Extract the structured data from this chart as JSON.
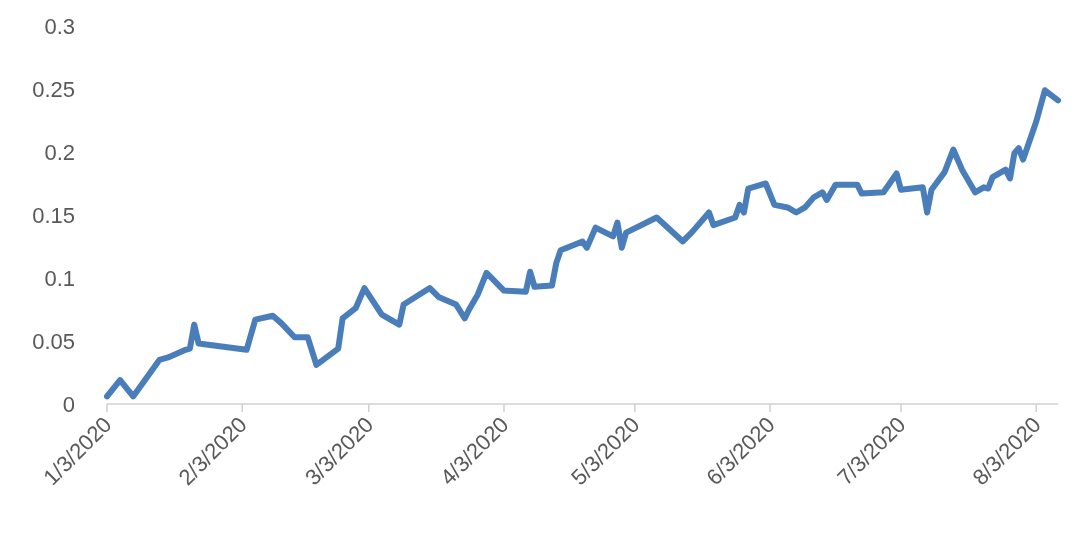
{
  "chart_data": {
    "type": "line",
    "marker": "none",
    "line_style": "solid",
    "xlim": [
      "2020-01-03",
      "2020-08-08"
    ],
    "xticks": [
      {
        "value": "2020-01-03",
        "label": "1/3/2020"
      },
      {
        "value": "2020-02-03",
        "label": "2/3/2020"
      },
      {
        "value": "2020-03-03",
        "label": "3/3/2020"
      },
      {
        "value": "2020-04-03",
        "label": "4/3/2020"
      },
      {
        "value": "2020-05-03",
        "label": "5/3/2020"
      },
      {
        "value": "2020-06-03",
        "label": "6/3/2020"
      },
      {
        "value": "2020-07-03",
        "label": "7/3/2020"
      },
      {
        "value": "2020-08-03",
        "label": "8/3/2020"
      }
    ],
    "ylim": [
      0,
      0.3
    ],
    "yticks": [
      0,
      0.05,
      0.1,
      0.15,
      0.2,
      0.25,
      0.3
    ],
    "x": [
      "2020-01-03",
      "2020-01-06",
      "2020-01-09",
      "2020-01-15",
      "2020-01-17",
      "2020-01-21",
      "2020-01-22",
      "2020-01-23",
      "2020-01-24",
      "2020-02-04",
      "2020-02-06",
      "2020-02-10",
      "2020-02-12",
      "2020-02-15",
      "2020-02-18",
      "2020-02-20",
      "2020-02-25",
      "2020-02-26",
      "2020-02-29",
      "2020-03-02",
      "2020-03-06",
      "2020-03-10",
      "2020-03-11",
      "2020-03-17",
      "2020-03-19",
      "2020-03-23",
      "2020-03-25",
      "2020-03-26",
      "2020-03-28",
      "2020-03-30",
      "2020-04-03",
      "2020-04-08",
      "2020-04-09",
      "2020-04-10",
      "2020-04-14",
      "2020-04-15",
      "2020-04-16",
      "2020-04-21",
      "2020-04-22",
      "2020-04-24",
      "2020-04-28",
      "2020-04-29",
      "2020-04-30",
      "2020-05-01",
      "2020-05-08",
      "2020-05-14",
      "2020-05-16",
      "2020-05-20",
      "2020-05-21",
      "2020-05-26",
      "2020-05-27",
      "2020-05-28",
      "2020-05-29",
      "2020-06-02",
      "2020-06-04",
      "2020-06-07",
      "2020-06-09",
      "2020-06-11",
      "2020-06-13",
      "2020-06-15",
      "2020-06-16",
      "2020-06-18",
      "2020-06-23",
      "2020-06-24",
      "2020-06-29",
      "2020-07-02",
      "2020-07-03",
      "2020-07-08",
      "2020-07-09",
      "2020-07-10",
      "2020-07-13",
      "2020-07-15",
      "2020-07-17",
      "2020-07-20",
      "2020-07-22",
      "2020-07-23",
      "2020-07-24",
      "2020-07-27",
      "2020-07-28",
      "2020-07-29",
      "2020-07-30",
      "2020-07-31",
      "2020-08-03",
      "2020-08-05",
      "2020-08-08"
    ],
    "series": [
      {
        "color": "#4a7ebb",
        "values": [
          0.006,
          0.019,
          0.006,
          0.035,
          0.037,
          0.043,
          0.044,
          0.063,
          0.048,
          0.043,
          0.067,
          0.07,
          0.064,
          0.053,
          0.053,
          0.031,
          0.044,
          0.068,
          0.076,
          0.092,
          0.071,
          0.063,
          0.079,
          0.092,
          0.085,
          0.079,
          0.068,
          0.075,
          0.087,
          0.104,
          0.09,
          0.089,
          0.105,
          0.093,
          0.094,
          0.112,
          0.122,
          0.129,
          0.124,
          0.14,
          0.133,
          0.144,
          0.124,
          0.136,
          0.148,
          0.129,
          0.136,
          0.152,
          0.142,
          0.148,
          0.158,
          0.152,
          0.171,
          0.175,
          0.158,
          0.156,
          0.152,
          0.156,
          0.164,
          0.168,
          0.162,
          0.174,
          0.174,
          0.167,
          0.168,
          0.183,
          0.17,
          0.172,
          0.152,
          0.17,
          0.184,
          0.202,
          0.186,
          0.168,
          0.172,
          0.171,
          0.18,
          0.186,
          0.179,
          0.199,
          0.203,
          0.194,
          0.224,
          0.249,
          0.241
        ]
      }
    ]
  }
}
